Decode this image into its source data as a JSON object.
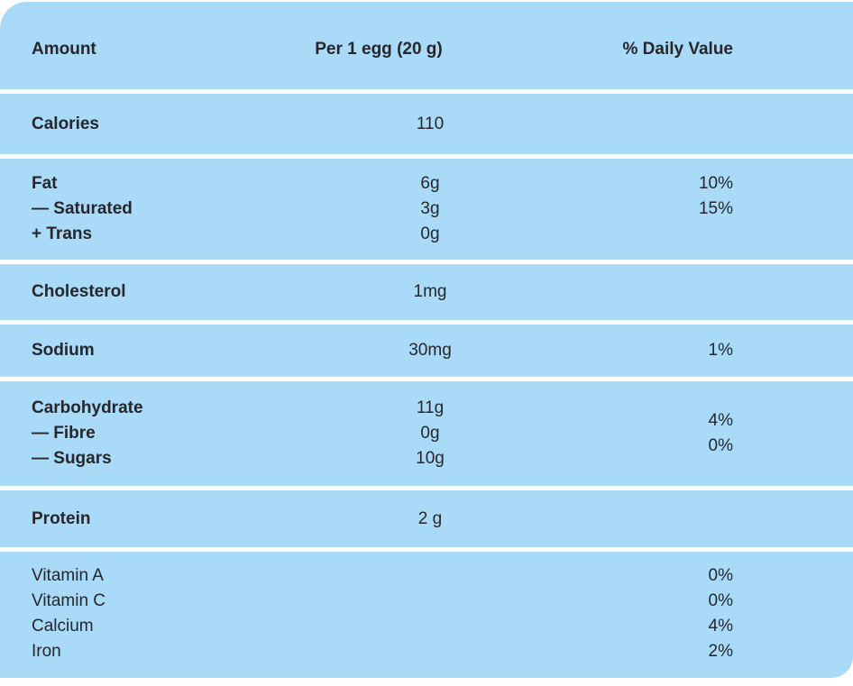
{
  "colors": {
    "page_bg": "#ffffff",
    "panel_bg": "#a9daf7",
    "divider": "#ffffff",
    "text": "#26262c"
  },
  "table": {
    "header": {
      "amount": "Amount",
      "per_serving": "Per 1 egg (20 g)",
      "daily_value": "% Daily Value"
    },
    "rows": [
      {
        "labels": [
          "Calories"
        ],
        "amounts": [
          "110"
        ],
        "daily_values": []
      },
      {
        "labels": [
          "Fat",
          "— Saturated",
          "+ Trans"
        ],
        "amounts": [
          "6g",
          "3g",
          "0g"
        ],
        "daily_values": [
          "10%",
          "15%",
          ""
        ]
      },
      {
        "labels": [
          "Cholesterol"
        ],
        "amounts": [
          "1mg"
        ],
        "daily_values": []
      },
      {
        "labels": [
          "Sodium"
        ],
        "amounts": [
          "30mg"
        ],
        "daily_values": [
          "1%"
        ]
      },
      {
        "labels": [
          "Carbohydrate",
          "— Fibre",
          "— Sugars"
        ],
        "amounts": [
          "11g",
          "0g",
          "10g"
        ],
        "daily_values": [
          "4%",
          "0%"
        ]
      },
      {
        "labels": [
          "Protein"
        ],
        "amounts": [
          "2 g"
        ],
        "daily_values": []
      },
      {
        "labels": [
          "Vitamin A",
          "Vitamin C",
          "Calcium",
          "Iron"
        ],
        "amounts": [],
        "daily_values": [
          "0%",
          "0%",
          "4%",
          "2%"
        ],
        "plain": true
      }
    ]
  }
}
